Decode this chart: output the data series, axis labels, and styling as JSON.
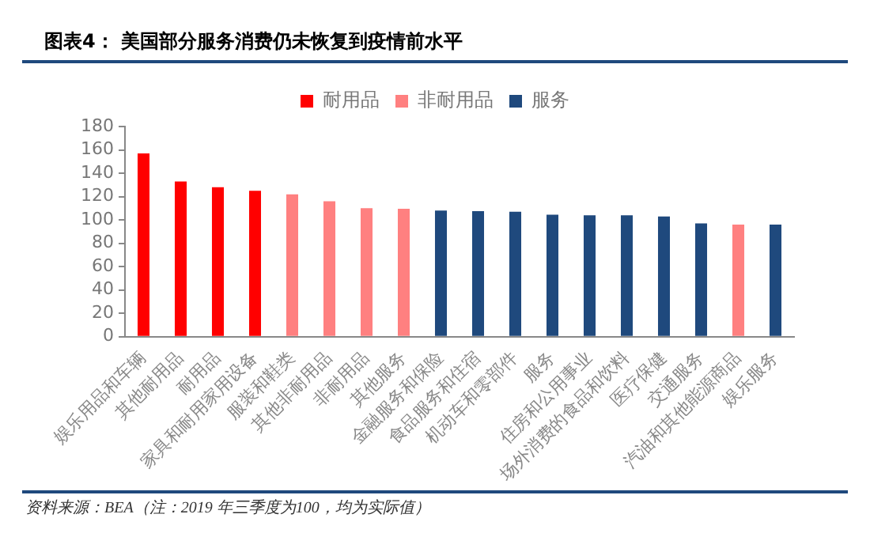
{
  "chart_data": {
    "type": "bar",
    "title": "图表4：  美国部分服务消费仍未恢复到疫情前水平",
    "categories": [
      "娱乐用品和车辆",
      "其他耐用品",
      "耐用品",
      "家具和耐用家用设备",
      "服装和鞋类",
      "其他非耐用品",
      "非耐用品",
      "其他服务",
      "金融服务和保险",
      "食品服务和住宿",
      "机动车和零部件",
      "服务",
      "住房和公用事业",
      "场外消费的食品和饮料",
      "医疗保健",
      "交通服务",
      "汽油和其他能源商品",
      "娱乐服务"
    ],
    "series": [
      {
        "name": "耐用品",
        "color": "#ff0000",
        "values": [
          157,
          133,
          128,
          125,
          null,
          null,
          null,
          null,
          null,
          null,
          null,
          null,
          null,
          null,
          null,
          null,
          null,
          null
        ]
      },
      {
        "name": "非耐用品",
        "color": "#ff8080",
        "values": [
          null,
          null,
          null,
          null,
          122,
          116,
          110,
          109.5,
          null,
          null,
          null,
          null,
          null,
          null,
          null,
          null,
          96,
          null
        ]
      },
      {
        "name": "服务",
        "color": "#1f497d",
        "values": [
          null,
          null,
          null,
          null,
          null,
          null,
          null,
          null,
          108,
          107.5,
          107,
          104.5,
          104,
          104,
          103,
          97,
          null,
          96
        ]
      }
    ],
    "ylim": [
      0,
      180
    ],
    "yticks": [
      0,
      20,
      40,
      60,
      80,
      100,
      120,
      140,
      160,
      180
    ],
    "grid": false,
    "legend": "top",
    "annotations": [
      "资料来源：BEA（注：2019 年三季度为100，均为实际值）"
    ]
  }
}
